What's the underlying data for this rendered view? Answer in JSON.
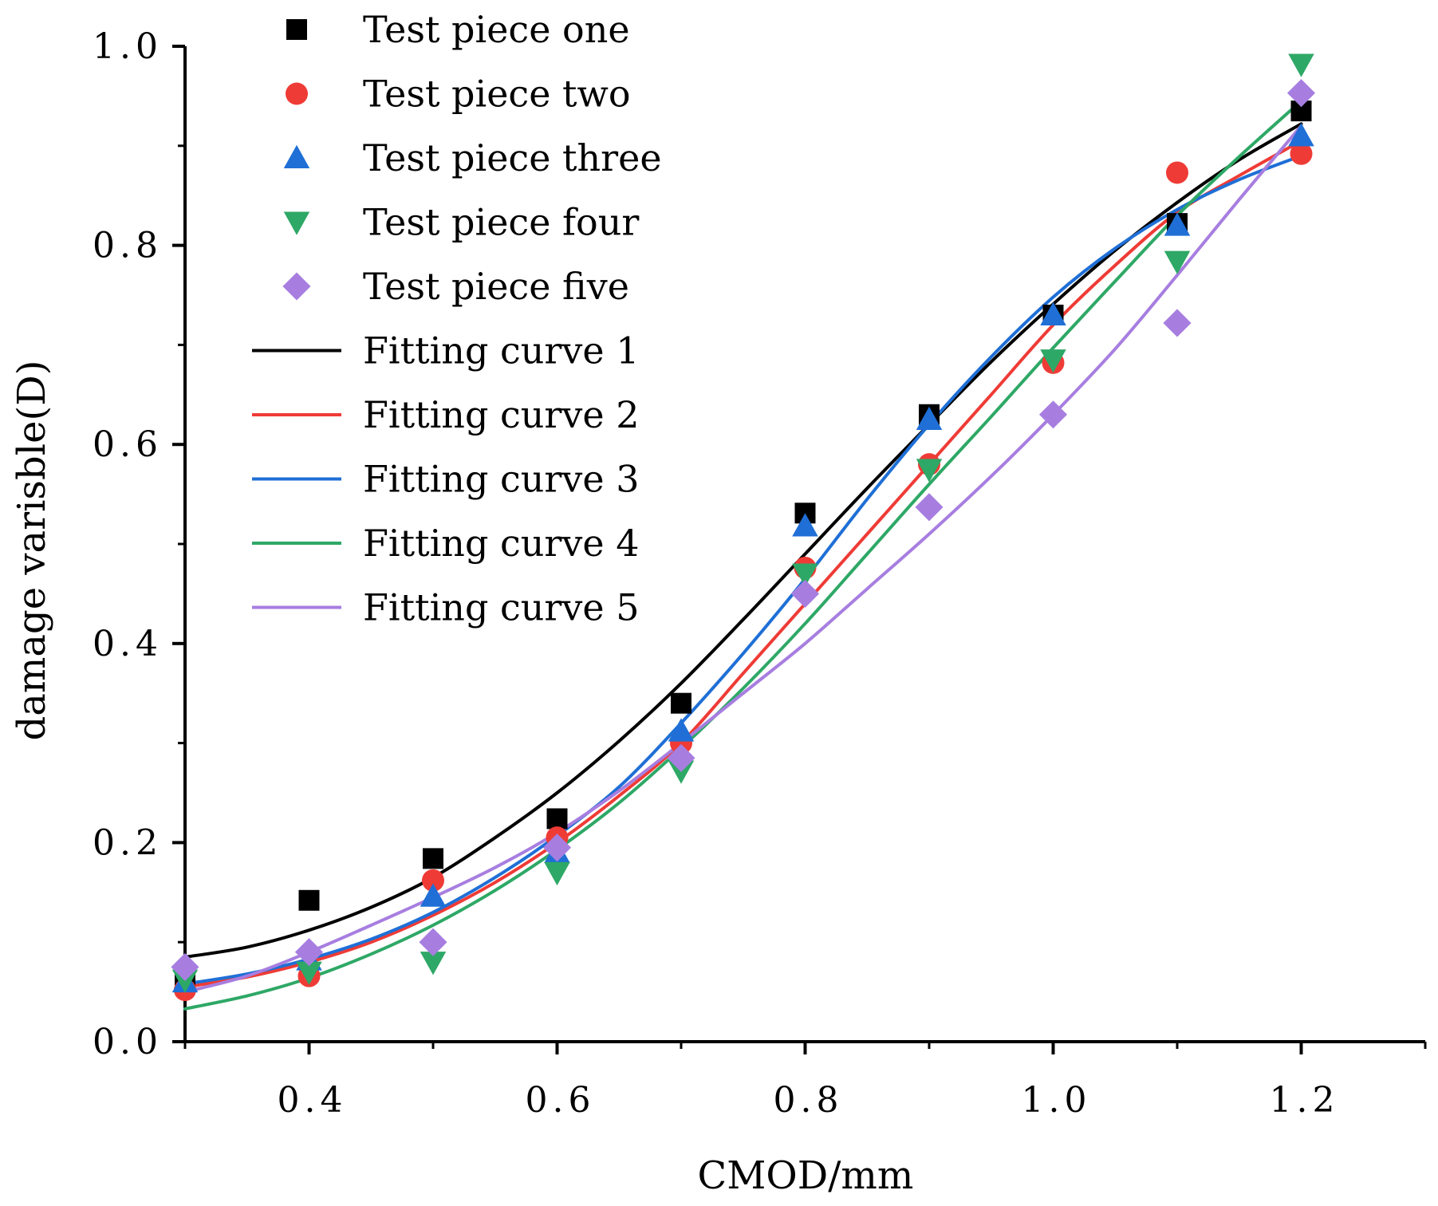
{
  "chart_data": {
    "type": "scatter",
    "xlabel": "CMOD/mm",
    "ylabel": "damage varisble(D)",
    "xlim": [
      0.3,
      1.3
    ],
    "ylim": [
      0.0,
      1.0
    ],
    "x_ticks": [
      0.4,
      0.6,
      0.8,
      1.0,
      1.2
    ],
    "x_tick_labels": [
      "0.4",
      "0.6",
      "0.8",
      "1.0",
      "1.2"
    ],
    "y_ticks": [
      0.0,
      0.2,
      0.4,
      0.6,
      0.8,
      1.0
    ],
    "y_tick_labels": [
      "0.0",
      "0.2",
      "0.4",
      "0.6",
      "0.8",
      "1.0"
    ],
    "grid": false,
    "legend_position": "top-left",
    "x": [
      0.3,
      0.4,
      0.5,
      0.6,
      0.7,
      0.8,
      0.9,
      1.0,
      1.1,
      1.2
    ],
    "series": [
      {
        "name": "Test piece one",
        "marker": "square",
        "color": "#000000",
        "values": [
          0.065,
          0.142,
          0.184,
          0.224,
          0.34,
          0.531,
          0.63,
          0.73,
          0.822,
          0.935
        ]
      },
      {
        "name": "Test piece two",
        "marker": "circle",
        "color": "#ef3b36",
        "values": [
          0.052,
          0.066,
          0.162,
          0.205,
          0.3,
          0.476,
          0.58,
          0.682,
          0.873,
          0.892
        ]
      },
      {
        "name": "Test piece three",
        "marker": "triangle-up",
        "color": "#1f6fd6",
        "values": [
          0.06,
          0.082,
          0.146,
          0.19,
          0.312,
          0.518,
          0.625,
          0.73,
          0.82,
          0.91
        ]
      },
      {
        "name": "Test piece four",
        "marker": "triangle-down",
        "color": "#2ea866",
        "values": [
          0.062,
          0.07,
          0.08,
          0.17,
          0.272,
          0.47,
          0.575,
          0.685,
          0.784,
          0.982
        ]
      },
      {
        "name": "Test piece five",
        "marker": "diamond",
        "color": "#a77ee0",
        "values": [
          0.075,
          0.09,
          0.1,
          0.195,
          0.285,
          0.45,
          0.537,
          0.63,
          0.722,
          0.953
        ]
      }
    ],
    "fit_curves": [
      {
        "name": "Fitting curve 1",
        "color": "#000000",
        "x": [
          0.3,
          0.35,
          0.4,
          0.45,
          0.5,
          0.55,
          0.6,
          0.65,
          0.7,
          0.75,
          0.8,
          0.85,
          0.9,
          0.95,
          1.0,
          1.05,
          1.1,
          1.15,
          1.2
        ],
        "y": [
          0.085,
          0.095,
          0.112,
          0.135,
          0.165,
          0.205,
          0.25,
          0.302,
          0.36,
          0.424,
          0.49,
          0.556,
          0.62,
          0.683,
          0.741,
          0.795,
          0.843,
          0.886,
          0.922
        ]
      },
      {
        "name": "Fitting curve 2",
        "color": "#ef3b36",
        "x": [
          0.3,
          0.35,
          0.4,
          0.45,
          0.5,
          0.55,
          0.6,
          0.65,
          0.7,
          0.75,
          0.8,
          0.85,
          0.9,
          0.95,
          1.0,
          1.05,
          1.1,
          1.15,
          1.2
        ],
        "y": [
          0.055,
          0.065,
          0.08,
          0.1,
          0.127,
          0.16,
          0.2,
          0.247,
          0.3,
          0.37,
          0.44,
          0.51,
          0.58,
          0.65,
          0.72,
          0.78,
          0.833,
          0.87,
          0.905
        ]
      },
      {
        "name": "Fitting curve 3",
        "color": "#1f6fd6",
        "x": [
          0.3,
          0.35,
          0.4,
          0.45,
          0.5,
          0.55,
          0.6,
          0.65,
          0.7,
          0.75,
          0.8,
          0.85,
          0.9,
          0.95,
          1.0,
          1.05,
          1.1,
          1.15,
          1.2
        ],
        "y": [
          0.058,
          0.068,
          0.083,
          0.103,
          0.13,
          0.165,
          0.207,
          0.256,
          0.32,
          0.39,
          0.465,
          0.545,
          0.62,
          0.688,
          0.748,
          0.797,
          0.836,
          0.866,
          0.89
        ]
      },
      {
        "name": "Fitting curve 4",
        "color": "#2ea866",
        "x": [
          0.3,
          0.35,
          0.4,
          0.45,
          0.5,
          0.55,
          0.6,
          0.65,
          0.7,
          0.75,
          0.8,
          0.85,
          0.9,
          0.95,
          1.0,
          1.05,
          1.1,
          1.15,
          1.2
        ],
        "y": [
          0.033,
          0.046,
          0.064,
          0.088,
          0.117,
          0.152,
          0.193,
          0.24,
          0.295,
          0.355,
          0.42,
          0.49,
          0.56,
          0.628,
          0.697,
          0.764,
          0.83,
          0.889,
          0.945
        ]
      },
      {
        "name": "Fitting curve 5",
        "color": "#a77ee0",
        "x": [
          0.3,
          0.35,
          0.4,
          0.45,
          0.5,
          0.55,
          0.6,
          0.65,
          0.7,
          0.75,
          0.8,
          0.85,
          0.9,
          0.95,
          1.0,
          1.05,
          1.1,
          1.15,
          1.2
        ],
        "y": [
          0.05,
          0.066,
          0.09,
          0.117,
          0.145,
          0.175,
          0.21,
          0.252,
          0.3,
          0.35,
          0.4,
          0.455,
          0.51,
          0.568,
          0.63,
          0.696,
          0.77,
          0.846,
          0.92
        ]
      }
    ]
  }
}
